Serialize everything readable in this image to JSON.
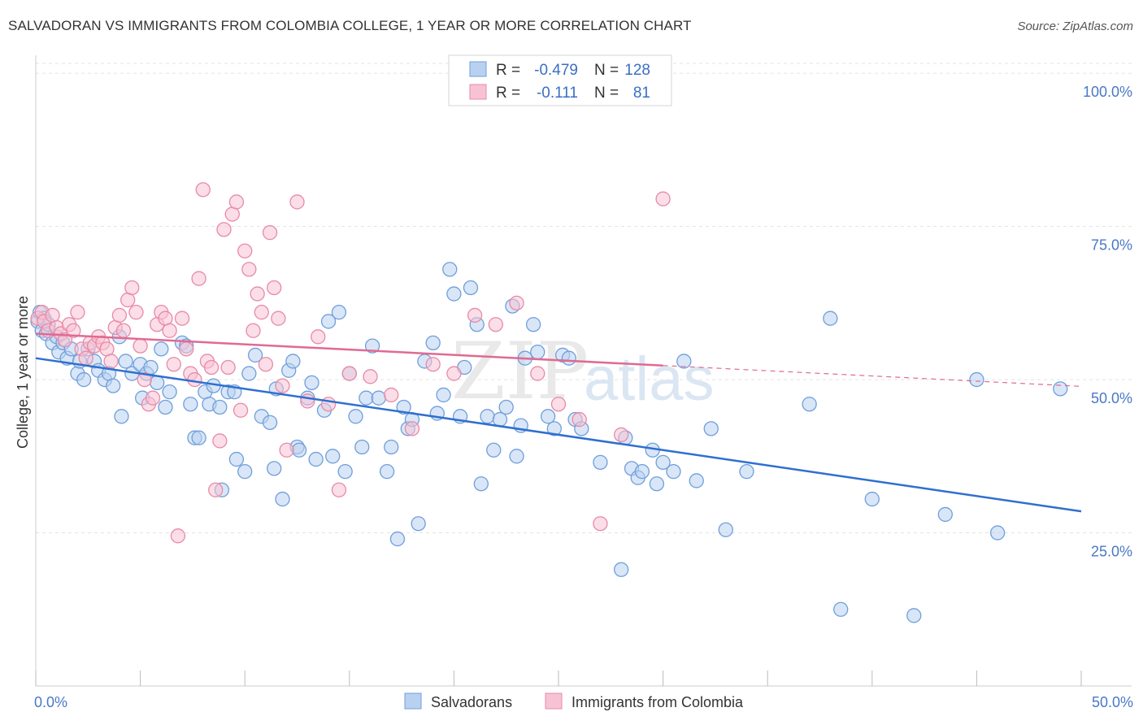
{
  "title": "SALVADORAN VS IMMIGRANTS FROM COLOMBIA COLLEGE, 1 YEAR OR MORE CORRELATION CHART",
  "source": "Source: ZipAtlas.com",
  "watermark": {
    "zip": "ZIP",
    "atlas": "atlas"
  },
  "colors": {
    "blue_fill": "#b9d1f1",
    "blue_stroke": "#6f9fdb",
    "blue_line": "#2f6fd0",
    "pink_fill": "#f7c3d4",
    "pink_stroke": "#e88aa8",
    "pink_line": "#e06a92",
    "grid": "#e3e3e3",
    "tick_text": "#4a78c6"
  },
  "legend": {
    "rows": [
      {
        "r_label": "R =",
        "r_value": "-0.479",
        "n_label": "N =",
        "n_value": "128"
      },
      {
        "r_label": "R =",
        "r_value": "-0.111",
        "n_label": "N =",
        "n_value": "81"
      }
    ]
  },
  "chart_data": {
    "type": "scatter",
    "xlabel": "",
    "ylabel": "College, 1 year or more",
    "xlim": [
      0,
      50
    ],
    "ylim": [
      0,
      104
    ],
    "x_tick_labels": [
      {
        "value": 0,
        "label": "0.0%"
      },
      {
        "value": 50,
        "label": "50.0%"
      }
    ],
    "y_tick_labels": [
      {
        "value": 25,
        "label": "25.0%"
      },
      {
        "value": 50,
        "label": "50.0%"
      },
      {
        "value": 75,
        "label": "75.0%"
      },
      {
        "value": 100,
        "label": "100.0%"
      }
    ],
    "series": [
      {
        "name": "Salvadorans",
        "color": "blue",
        "trend": {
          "x": [
            0,
            50
          ],
          "y": [
            53.5,
            28.5
          ],
          "dashed_to": null
        },
        "points": [
          [
            0.1,
            59.5
          ],
          [
            0.2,
            61
          ],
          [
            0.3,
            58
          ],
          [
            0.4,
            60
          ],
          [
            0.5,
            57.5
          ],
          [
            0.6,
            59
          ],
          [
            0.8,
            56
          ],
          [
            1,
            57
          ],
          [
            1.1,
            54.5
          ],
          [
            1.3,
            56
          ],
          [
            1.5,
            53.5
          ],
          [
            1.7,
            55
          ],
          [
            2,
            51
          ],
          [
            2.1,
            53
          ],
          [
            2.3,
            50
          ],
          [
            2.5,
            55
          ],
          [
            2.8,
            53
          ],
          [
            3,
            51.5
          ],
          [
            3.3,
            50
          ],
          [
            3.5,
            51
          ],
          [
            3.7,
            49
          ],
          [
            4,
            57
          ],
          [
            4.1,
            44
          ],
          [
            4.3,
            53
          ],
          [
            4.6,
            51
          ],
          [
            5,
            52.5
          ],
          [
            5.1,
            47
          ],
          [
            5.3,
            51
          ],
          [
            5.5,
            52
          ],
          [
            5.8,
            49.5
          ],
          [
            6,
            55
          ],
          [
            6.2,
            45.5
          ],
          [
            6.4,
            48
          ],
          [
            7,
            56
          ],
          [
            7.2,
            55.5
          ],
          [
            7.4,
            46
          ],
          [
            7.6,
            40.5
          ],
          [
            7.8,
            40.5
          ],
          [
            8.1,
            48
          ],
          [
            8.3,
            46
          ],
          [
            8.5,
            49
          ],
          [
            8.8,
            45.5
          ],
          [
            8.9,
            32
          ],
          [
            9.2,
            48
          ],
          [
            9.5,
            48
          ],
          [
            9.6,
            37
          ],
          [
            10,
            35
          ],
          [
            10.2,
            51
          ],
          [
            10.5,
            54
          ],
          [
            10.8,
            44
          ],
          [
            11.2,
            43
          ],
          [
            11.4,
            35.5
          ],
          [
            11.5,
            48.5
          ],
          [
            11.8,
            30.5
          ],
          [
            12.1,
            51.5
          ],
          [
            12.3,
            53
          ],
          [
            12.5,
            39
          ],
          [
            12.6,
            38.5
          ],
          [
            13,
            47
          ],
          [
            13.2,
            49.5
          ],
          [
            13.4,
            37
          ],
          [
            13.8,
            45
          ],
          [
            14,
            59.5
          ],
          [
            14.2,
            37.5
          ],
          [
            14.5,
            61
          ],
          [
            14.8,
            35
          ],
          [
            15,
            51
          ],
          [
            15.3,
            44
          ],
          [
            15.6,
            39
          ],
          [
            15.8,
            47
          ],
          [
            16.1,
            55.5
          ],
          [
            16.4,
            47
          ],
          [
            16.8,
            35
          ],
          [
            17,
            39
          ],
          [
            17.3,
            24
          ],
          [
            17.6,
            45.5
          ],
          [
            17.8,
            42
          ],
          [
            18,
            43.5
          ],
          [
            18.3,
            26.5
          ],
          [
            18.6,
            53
          ],
          [
            19,
            56
          ],
          [
            19.2,
            44.5
          ],
          [
            19.5,
            47.5
          ],
          [
            19.8,
            68
          ],
          [
            20,
            64
          ],
          [
            20.3,
            44
          ],
          [
            20.5,
            52
          ],
          [
            20.8,
            65
          ],
          [
            21.1,
            59
          ],
          [
            21.3,
            33
          ],
          [
            21.6,
            44
          ],
          [
            21.9,
            38.5
          ],
          [
            22.2,
            43.5
          ],
          [
            22.5,
            45.5
          ],
          [
            22.8,
            62
          ],
          [
            23,
            37.5
          ],
          [
            23.2,
            42.5
          ],
          [
            23.4,
            53.5
          ],
          [
            23.8,
            59
          ],
          [
            24,
            54.5
          ],
          [
            24.5,
            44
          ],
          [
            24.8,
            42
          ],
          [
            25.2,
            54
          ],
          [
            25.5,
            53.5
          ],
          [
            25.8,
            43.5
          ],
          [
            26.1,
            42
          ],
          [
            27,
            36.5
          ],
          [
            28,
            19
          ],
          [
            28.2,
            40.5
          ],
          [
            28.5,
            35.5
          ],
          [
            28.8,
            34
          ],
          [
            29,
            35
          ],
          [
            29.5,
            38.5
          ],
          [
            29.7,
            33
          ],
          [
            30,
            36.5
          ],
          [
            30.5,
            35
          ],
          [
            31,
            53
          ],
          [
            31.6,
            33.5
          ],
          [
            32.3,
            42
          ],
          [
            33,
            25.5
          ],
          [
            34,
            35
          ],
          [
            37,
            46
          ],
          [
            38,
            60
          ],
          [
            38.5,
            12.5
          ],
          [
            40,
            30.5
          ],
          [
            42,
            11.5
          ],
          [
            43.5,
            28
          ],
          [
            45,
            50
          ],
          [
            46,
            25
          ],
          [
            49,
            48.5
          ]
        ]
      },
      {
        "name": "Immigrants from Colombia",
        "color": "pink",
        "trend": {
          "x": [
            0,
            30
          ],
          "y": [
            57.5,
            52.3
          ],
          "dashed_to": {
            "x": 50,
            "y": 48.9
          }
        },
        "points": [
          [
            0.1,
            60
          ],
          [
            0.3,
            61
          ],
          [
            0.4,
            59.5
          ],
          [
            0.6,
            58
          ],
          [
            0.8,
            60.5
          ],
          [
            1,
            58.5
          ],
          [
            1.2,
            57.5
          ],
          [
            1.4,
            56.5
          ],
          [
            1.6,
            59
          ],
          [
            1.8,
            58
          ],
          [
            2,
            61
          ],
          [
            2.2,
            55
          ],
          [
            2.4,
            53.5
          ],
          [
            2.6,
            56
          ],
          [
            2.8,
            55.5
          ],
          [
            3,
            57
          ],
          [
            3.2,
            56
          ],
          [
            3.4,
            55
          ],
          [
            3.6,
            53
          ],
          [
            3.8,
            58.5
          ],
          [
            4,
            60.5
          ],
          [
            4.2,
            58
          ],
          [
            4.4,
            63
          ],
          [
            4.6,
            65
          ],
          [
            4.8,
            61
          ],
          [
            5,
            55.5
          ],
          [
            5.2,
            50
          ],
          [
            5.4,
            46
          ],
          [
            5.6,
            47
          ],
          [
            5.8,
            59
          ],
          [
            6,
            61
          ],
          [
            6.2,
            60
          ],
          [
            6.4,
            58
          ],
          [
            6.6,
            52.5
          ],
          [
            6.8,
            24.5
          ],
          [
            7,
            60
          ],
          [
            7.2,
            55
          ],
          [
            7.4,
            51
          ],
          [
            7.6,
            50
          ],
          [
            7.8,
            66.5
          ],
          [
            8,
            81
          ],
          [
            8.2,
            53
          ],
          [
            8.4,
            52
          ],
          [
            8.6,
            32
          ],
          [
            8.8,
            40
          ],
          [
            9,
            74.5
          ],
          [
            9.2,
            52
          ],
          [
            9.4,
            77
          ],
          [
            9.6,
            79
          ],
          [
            9.8,
            45
          ],
          [
            10,
            71
          ],
          [
            10.2,
            68
          ],
          [
            10.4,
            58
          ],
          [
            10.6,
            64
          ],
          [
            10.8,
            61
          ],
          [
            11,
            52.5
          ],
          [
            11.2,
            74
          ],
          [
            11.4,
            65
          ],
          [
            11.6,
            60
          ],
          [
            11.8,
            49
          ],
          [
            12,
            38.5
          ],
          [
            12.5,
            79
          ],
          [
            13,
            46.5
          ],
          [
            13.5,
            57
          ],
          [
            14,
            46
          ],
          [
            14.5,
            32
          ],
          [
            15,
            51
          ],
          [
            16,
            50.5
          ],
          [
            17,
            47.5
          ],
          [
            18,
            42
          ],
          [
            19,
            52.5
          ],
          [
            20,
            51
          ],
          [
            21,
            60.5
          ],
          [
            22,
            59
          ],
          [
            23,
            62.5
          ],
          [
            24,
            51
          ],
          [
            25,
            46
          ],
          [
            26,
            43.5
          ],
          [
            27,
            26.5
          ],
          [
            28,
            41
          ],
          [
            30,
            79.5
          ]
        ]
      }
    ]
  },
  "bottom_legend": [
    {
      "label": "Salvadorans",
      "color": "blue"
    },
    {
      "label": "Immigrants from Colombia",
      "color": "pink"
    }
  ]
}
